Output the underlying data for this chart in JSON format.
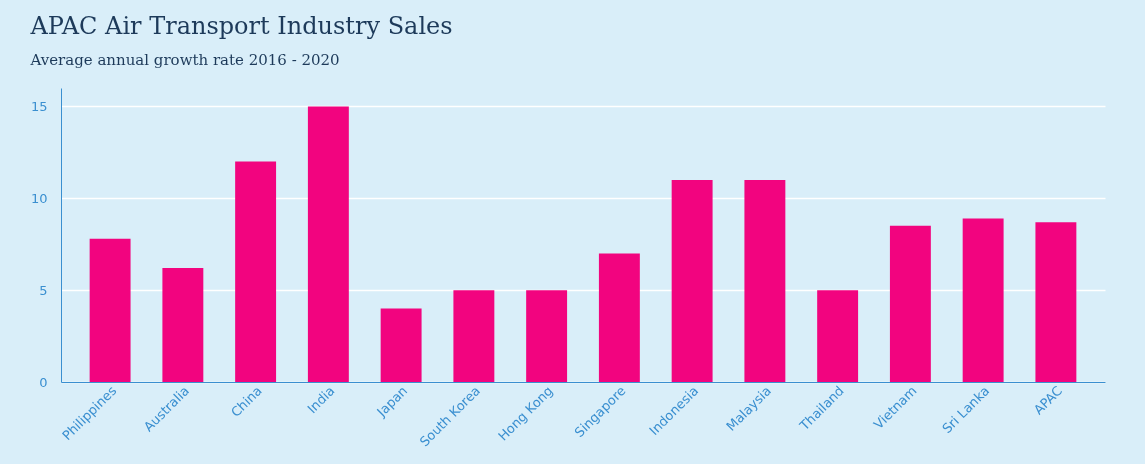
{
  "chart_data": {
    "type": "bar",
    "title": "APAC Air Transport Industry Sales",
    "subtitle": "Average annual growth rate 2016 - 2020",
    "categories": [
      "Philippines",
      "Australia",
      "China",
      "India",
      "Japan",
      "South Korea",
      "Hong Kong",
      "Singapore",
      "Indonesia",
      "Malaysia",
      "Thailand",
      "Vietnam",
      "Sri Lanka",
      "APAC"
    ],
    "values": [
      7.8,
      6.2,
      12.0,
      15.0,
      4.0,
      5.0,
      5.0,
      7.0,
      11.0,
      11.0,
      5.0,
      8.5,
      8.9,
      8.7
    ],
    "color": "#f2047f",
    "ylim": [
      0,
      16
    ],
    "yticks": [
      0,
      5,
      10,
      15
    ],
    "grid": "y"
  }
}
